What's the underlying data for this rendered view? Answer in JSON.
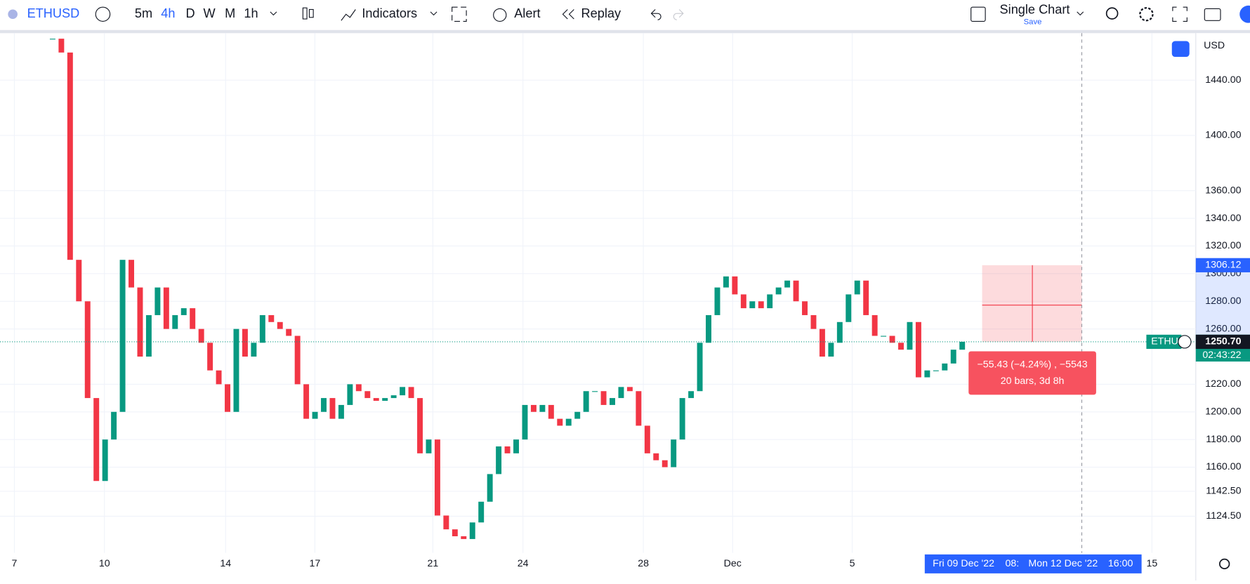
{
  "toolbar": {
    "symbol": "ETHUSD",
    "intervals": [
      "5m",
      "4h",
      "D",
      "W",
      "M",
      "1h"
    ],
    "indicators": "Indicators",
    "alert": "Alert",
    "replay": "Replay",
    "layout": "Single Chart",
    "save": "Save"
  },
  "chart_data": {
    "type": "candlestick",
    "currency": "USD",
    "close": [
      1470,
      1460,
      1310,
      1280,
      1210,
      1150,
      1180,
      1200,
      1310,
      1290,
      1240,
      1270,
      1290,
      1260,
      1270,
      1275,
      1260,
      1250,
      1230,
      1220,
      1200,
      1260,
      1240,
      1250,
      1270,
      1265,
      1260,
      1255,
      1220,
      1195,
      1200,
      1210,
      1195,
      1205,
      1220,
      1215,
      1210,
      1208,
      1210,
      1212,
      1218,
      1210,
      1170,
      1180,
      1125,
      1115,
      1110,
      1108,
      1120,
      1135,
      1155,
      1175,
      1170,
      1180,
      1205,
      1200,
      1205,
      1195,
      1190,
      1195,
      1200,
      1215,
      1215,
      1205,
      1210,
      1218,
      1215,
      1190,
      1170,
      1165,
      1160,
      1180,
      1210,
      1215,
      1250,
      1270,
      1290,
      1298,
      1285,
      1275,
      1280,
      1275,
      1285,
      1290,
      1295,
      1280,
      1270,
      1260,
      1240,
      1250,
      1265,
      1285,
      1295,
      1270,
      1255,
      1255,
      1250,
      1245,
      1265,
      1225,
      1230,
      1230,
      1235,
      1245,
      1250.7
    ],
    "ylim": [
      1098,
      1474
    ],
    "yticks": [
      {
        "value": 1440,
        "label": "1440.00"
      },
      {
        "value": 1400,
        "label": "1400.00"
      },
      {
        "value": 1360,
        "label": "1360.00"
      },
      {
        "value": 1340,
        "label": "1340.00"
      },
      {
        "value": 1320,
        "label": "1320.00"
      },
      {
        "value": 1300,
        "label": "1300.00"
      },
      {
        "value": 1280,
        "label": "1280.00"
      },
      {
        "value": 1260,
        "label": "1260.00"
      },
      {
        "value": 1220,
        "label": "1220.00"
      },
      {
        "value": 1200,
        "label": "1200.00"
      },
      {
        "value": 1180,
        "label": "1180.00"
      },
      {
        "value": 1160,
        "label": "1160.00"
      },
      {
        "value": 1142.5,
        "label": "1142.50"
      },
      {
        "value": 1124.5,
        "label": "1124.50"
      }
    ],
    "x_labels": [
      "7",
      "10",
      "14",
      "17",
      "21",
      "24",
      "28",
      "Dec",
      "5",
      "15"
    ],
    "last_price": {
      "symbol": "ETHU",
      "price": {
        "value": 1250.7,
        "label": "1250.70"
      },
      "countdown": "02:43:22"
    },
    "measure": {
      "top": {
        "value": 1306.12,
        "label": "1306.12"
      },
      "summary": "−55.43 (−4.24%) , −5543",
      "bars": "20 bars, 3d 8h"
    },
    "crosshair": [
      "Fri 09 Dec '22",
      "08:",
      "Mon 12 Dec '22",
      "16:00"
    ]
  }
}
